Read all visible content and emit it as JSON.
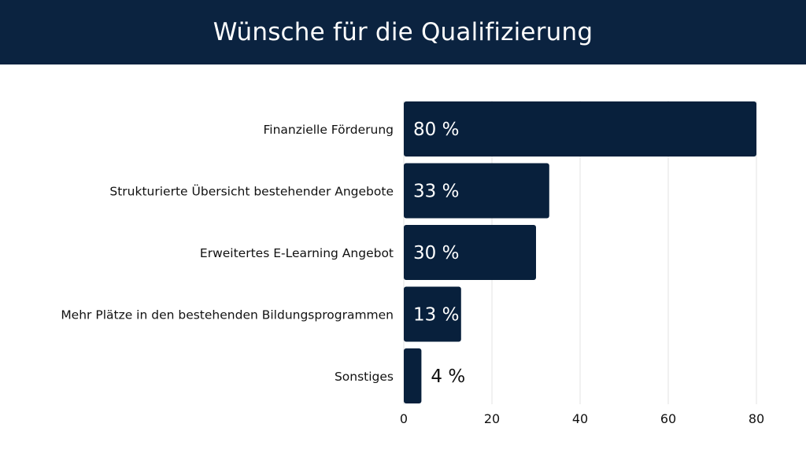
{
  "header": {
    "title": "Wünsche für die Qualifizierung"
  },
  "colors": {
    "bar": "#08203c",
    "header": "#0b2340",
    "grid": "#e3e3e3",
    "label_inside": "#ffffff",
    "label_outside": "#111111"
  },
  "chart_data": {
    "type": "bar",
    "orientation": "horizontal",
    "title": "Wünsche für die Qualifizierung",
    "categories": [
      "Finanzielle Förderung",
      "Strukturierte Übersicht bestehender Angebote",
      "Erweitertes E-Learning Angebot",
      "Mehr Plätze in den bestehenden Bildungsprogrammen",
      "Sonstiges"
    ],
    "values": [
      80,
      33,
      30,
      13,
      4
    ],
    "data_labels": [
      "80 %",
      "33 %",
      "30 %",
      "13 %",
      "4 %"
    ],
    "xlim": [
      0,
      80
    ],
    "xticks": [
      0,
      20,
      40,
      60,
      80
    ],
    "grid": true,
    "legend": "none"
  }
}
